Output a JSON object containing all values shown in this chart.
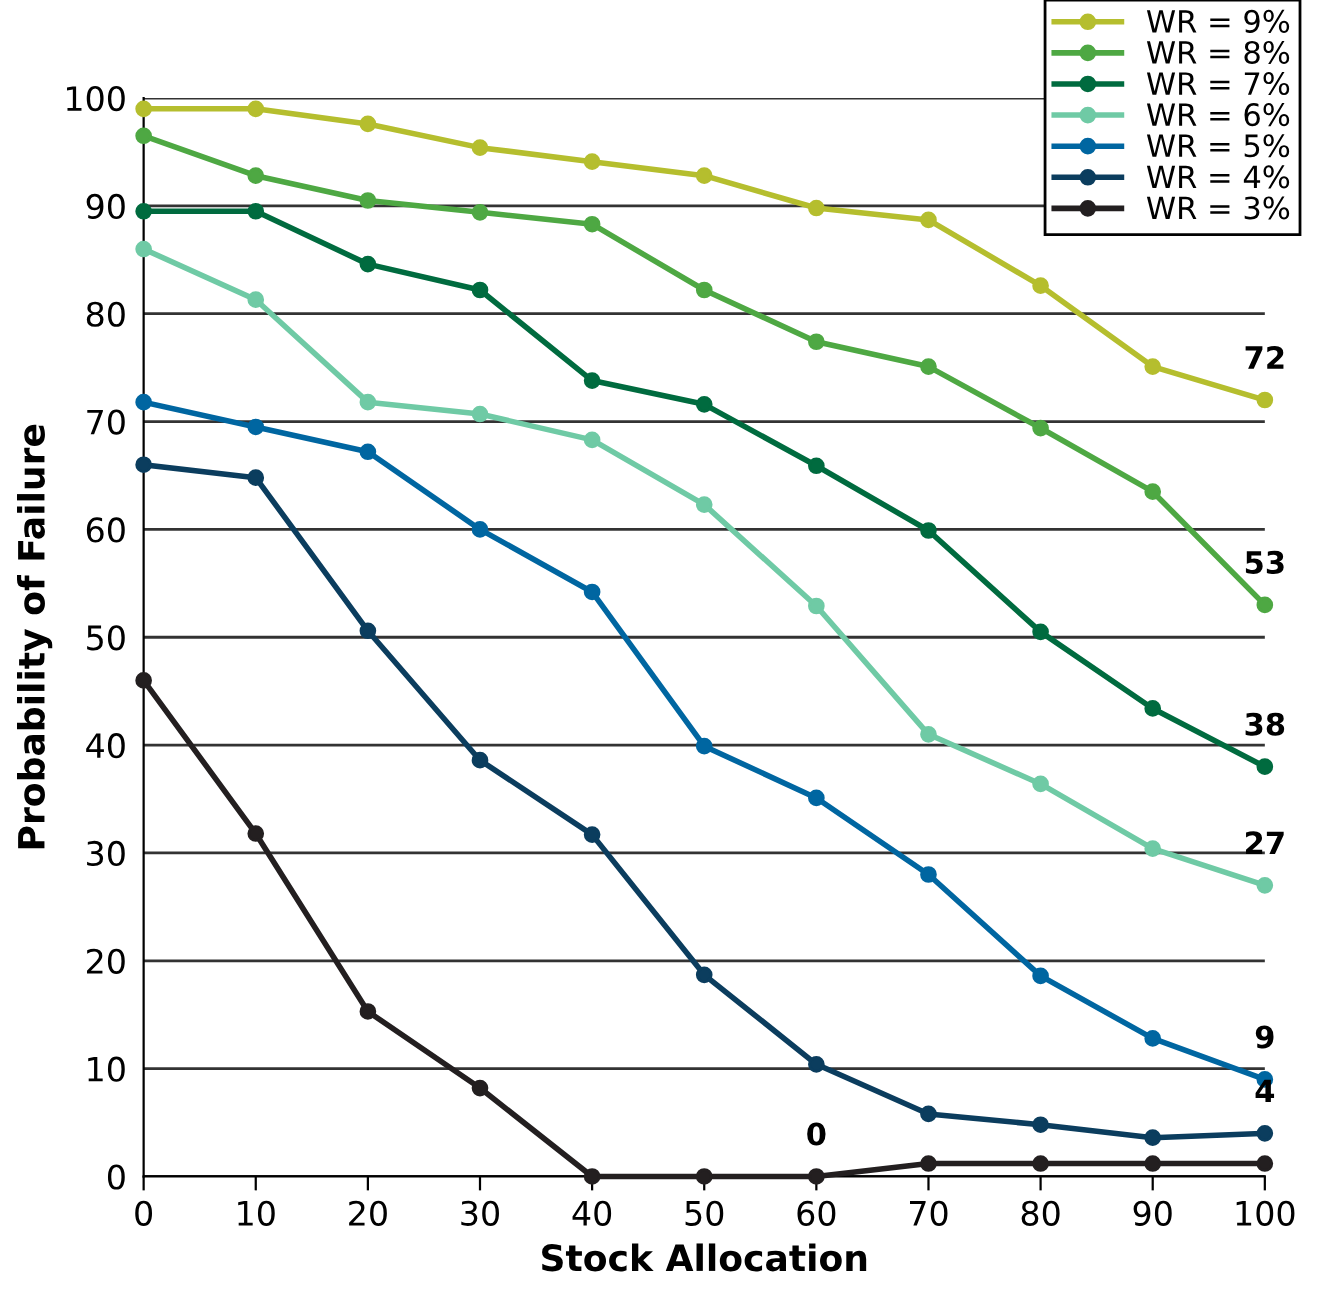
{
  "chart_data": {
    "type": "line",
    "xlabel": "Stock Allocation",
    "ylabel": "Probability of Failure",
    "x": [
      0,
      10,
      20,
      30,
      40,
      50,
      60,
      70,
      80,
      90,
      100
    ],
    "xlim": [
      0,
      100
    ],
    "xticks": [
      0,
      10,
      20,
      30,
      40,
      50,
      60,
      70,
      80,
      90,
      100
    ],
    "ylim": [
      0,
      100
    ],
    "yticks": [
      0,
      10,
      20,
      30,
      40,
      50,
      60,
      70,
      80,
      90,
      100
    ],
    "grid": "y",
    "legend": "top right",
    "marker": "circle",
    "line_style": "solid",
    "series": [
      {
        "name": "WR = 9%",
        "color": "#b5be2e",
        "values": [
          99,
          99,
          97.6,
          95.4,
          94.1,
          92.8,
          89.8,
          88.7,
          82.6,
          75.1,
          72
        ],
        "value_labels": [
          null,
          null,
          null,
          null,
          null,
          null,
          null,
          null,
          null,
          null,
          "72"
        ]
      },
      {
        "name": "WR = 8%",
        "color": "#4ea843",
        "values": [
          96.5,
          92.8,
          90.5,
          89.4,
          88.3,
          82.2,
          77.4,
          75.1,
          69.4,
          63.5,
          53
        ],
        "value_labels": [
          null,
          null,
          null,
          null,
          null,
          null,
          null,
          null,
          null,
          null,
          "53"
        ]
      },
      {
        "name": "WR = 7%",
        "color": "#006b3f",
        "values": [
          89.5,
          89.5,
          84.6,
          82.2,
          73.8,
          71.6,
          65.9,
          59.9,
          50.5,
          43.4,
          38
        ],
        "value_labels": [
          null,
          null,
          null,
          null,
          null,
          null,
          null,
          null,
          null,
          null,
          "38"
        ]
      },
      {
        "name": "WR = 6%",
        "color": "#6fcaa5",
        "values": [
          86,
          81.3,
          71.8,
          70.7,
          68.3,
          62.3,
          52.9,
          41,
          36.4,
          30.4,
          27
        ],
        "value_labels": [
          null,
          null,
          null,
          null,
          null,
          null,
          null,
          null,
          null,
          null,
          "27"
        ]
      },
      {
        "name": "WR = 5%",
        "color": "#0066a1",
        "values": [
          71.8,
          69.5,
          67.2,
          60,
          54.2,
          39.9,
          35.1,
          28,
          18.6,
          12.8,
          9
        ],
        "value_labels": [
          null,
          null,
          null,
          null,
          null,
          null,
          null,
          null,
          null,
          null,
          "9"
        ]
      },
      {
        "name": "WR = 4%",
        "color": "#0b3d5e",
        "values": [
          66,
          64.8,
          50.6,
          38.6,
          31.7,
          18.7,
          10.4,
          5.8,
          4.8,
          3.6,
          4
        ],
        "value_labels": [
          null,
          null,
          null,
          null,
          null,
          null,
          null,
          null,
          null,
          null,
          "4"
        ]
      },
      {
        "name": "WR = 3%",
        "color": "#231f20",
        "values": [
          46,
          31.8,
          15.3,
          8.2,
          0,
          0,
          0,
          1.2,
          1.2,
          1.2,
          1.2
        ],
        "value_labels": [
          null,
          null,
          null,
          null,
          null,
          null,
          "0",
          null,
          null,
          null,
          null
        ]
      }
    ]
  }
}
